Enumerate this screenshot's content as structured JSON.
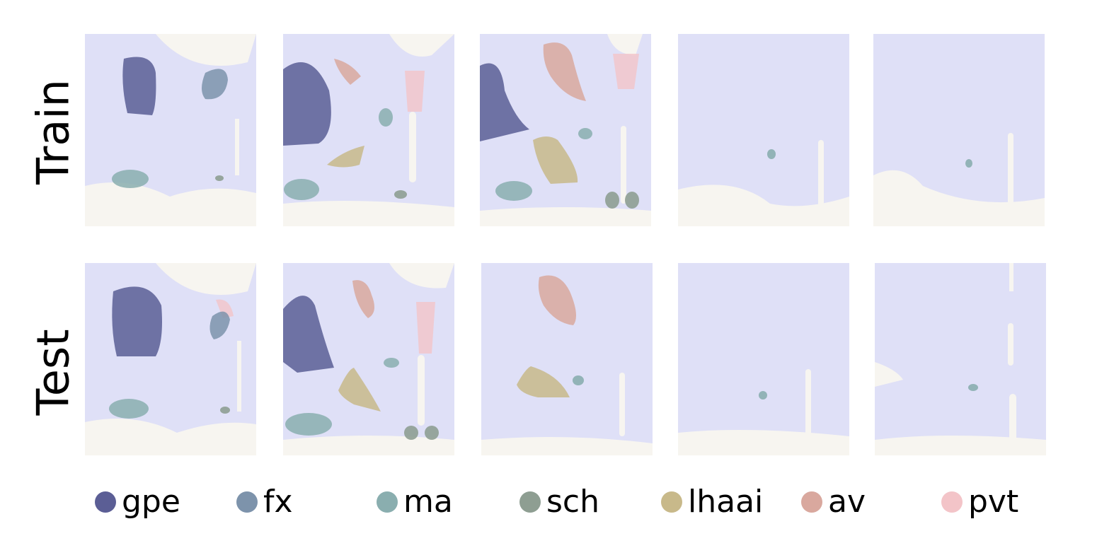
{
  "rows": {
    "train": "Train",
    "test": "Test"
  },
  "legend": [
    {
      "label": "gpe",
      "color": "#5b5e95"
    },
    {
      "label": "fx",
      "color": "#7d93ab"
    },
    {
      "label": "ma",
      "color": "#8aaeaf"
    },
    {
      "label": "sch",
      "color": "#8e9e92"
    },
    {
      "label": "lhaai",
      "color": "#c8b98a"
    },
    {
      "label": "av",
      "color": "#d9a89e"
    },
    {
      "label": "pvt",
      "color": "#f3c4c8"
    }
  ],
  "colors": {
    "tissue": "#dfe0f7",
    "stain": "#7c80d9",
    "background": "#f7f5f0"
  }
}
